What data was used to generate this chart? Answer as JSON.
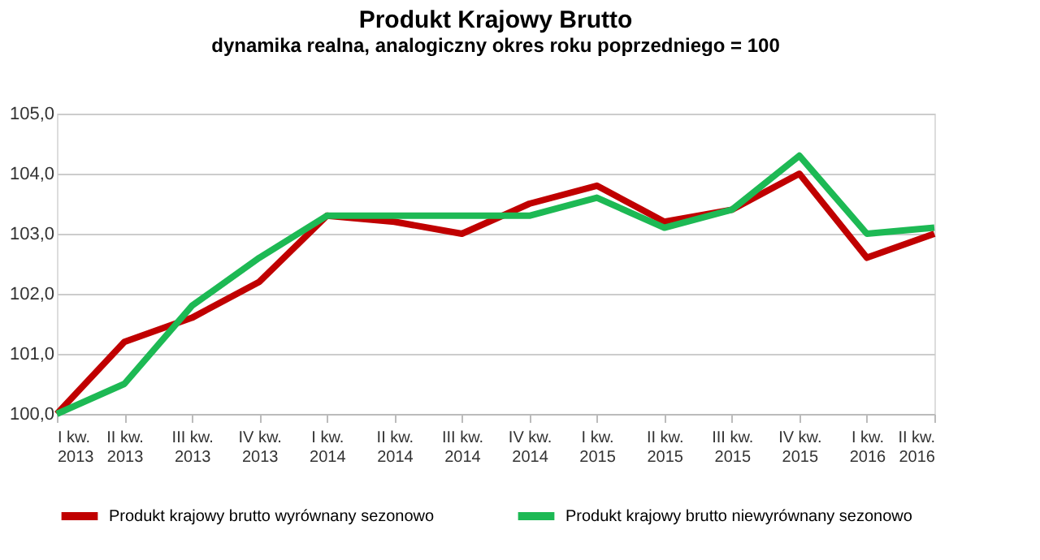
{
  "chart_data": {
    "type": "line",
    "title": "Produkt Krajowy Brutto",
    "subtitle": "dynamika realna, analogiczny okres roku poprzedniego = 100",
    "categories": [
      "I kw. 2013",
      "II kw. 2013",
      "III kw. 2013",
      "IV kw. 2013",
      "I kw. 2014",
      "II kw. 2014",
      "III kw. 2014",
      "IV kw. 2014",
      "I kw. 2015",
      "II kw. 2015",
      "III kw. 2015",
      "IV kw. 2015",
      "I kw. 2016",
      "II kw. 2016"
    ],
    "series": [
      {
        "name": "Produkt krajowy brutto wyrównany sezonowo",
        "color": "#c00000",
        "values": [
          100.0,
          101.2,
          101.6,
          102.2,
          103.3,
          103.2,
          103.0,
          103.5,
          103.8,
          103.2,
          103.4,
          104.0,
          102.6,
          103.0
        ]
      },
      {
        "name": "Produkt krajowy brutto niewyrównany sezonowo",
        "color": "#1db954",
        "values": [
          100.0,
          100.5,
          101.8,
          102.6,
          103.3,
          103.3,
          103.3,
          103.3,
          103.6,
          103.1,
          103.4,
          104.3,
          103.0,
          103.1
        ]
      }
    ],
    "ylim": [
      100,
      105
    ],
    "yticks": [
      {
        "value": 100,
        "label": "100,0"
      },
      {
        "value": 101,
        "label": "101,0"
      },
      {
        "value": 102,
        "label": "102,0"
      },
      {
        "value": 103,
        "label": "103,0"
      },
      {
        "value": 104,
        "label": "104,0"
      },
      {
        "value": 105,
        "label": "105,0"
      }
    ],
    "grid": "y",
    "legend": "bottom",
    "marker": "none",
    "line_style": "solid"
  }
}
